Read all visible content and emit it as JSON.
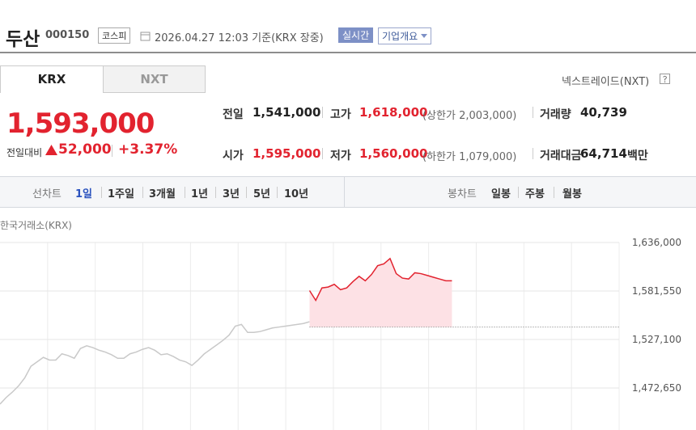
{
  "header": {
    "name": "두산",
    "code": "000150",
    "market": "코스피",
    "timestamp": "2026.04.27 12:03 기준(KRX 장중)",
    "realtime": "실시간",
    "company_info": "기업개요"
  },
  "tabs": [
    "KRX",
    "NXT"
  ],
  "nxt_link": "넥스트레이드(NXT)",
  "quote": {
    "price": "1,593,000",
    "change_label": "전일대비",
    "change": "52,000",
    "change_pct": "+3.37%"
  },
  "stats": [
    {
      "label": "전일",
      "value": "1,541,000"
    },
    {
      "label": "고가",
      "value": "1,618,000",
      "extra": "(상한가 2,003,000)"
    },
    {
      "label": "거래량",
      "value": "40,739"
    },
    {
      "label": "시가",
      "value": "1,595,000"
    },
    {
      "label": "저가",
      "value": "1,560,000",
      "extra": "(하한가 1,079,000)"
    },
    {
      "label": "거래대금",
      "value": "64,714",
      "unit": "백만"
    }
  ],
  "chart_tabs": {
    "line_label": "선차트",
    "line": [
      "1일",
      "1주일",
      "3개월",
      "1년",
      "3년",
      "5년",
      "10년"
    ],
    "candle_label": "봉차트",
    "candle": [
      "일봉",
      "주봉",
      "월봉"
    ]
  },
  "chart_data": {
    "type": "line",
    "title": "한국거래소(KRX)",
    "ylim": [
      1425460,
      1636000
    ],
    "yticks": [
      {
        "value": 1636000,
        "label": "1,636,000"
      },
      {
        "value": 1581550,
        "label": "1,581,550"
      },
      {
        "value": 1527100,
        "label": "1,527,100"
      },
      {
        "value": 1472650,
        "label": "1,472,650"
      }
    ],
    "grid": true,
    "baseline": 1541000,
    "series": [
      {
        "color": "#c9c9c9",
        "values": [
          1454500,
          1462000,
          1468000,
          1475000,
          1484000,
          1497000,
          1502000,
          1507000,
          1504000,
          1504000,
          1511000,
          1509000,
          1506000,
          1517000,
          1520000,
          1518000,
          1515000,
          1513000,
          1510000,
          1506000,
          1506000,
          1511000,
          1513000,
          1516000,
          1518000,
          1515000,
          1510000,
          1511000,
          1508000,
          1504000,
          1502000,
          1498000,
          1504000,
          1511000,
          1516000,
          1521000,
          1526000,
          1532000,
          1542000,
          1544000,
          1535000,
          1535000,
          1536000,
          1538000,
          1540000,
          1541000,
          1542000,
          1543000,
          1544000,
          1545000,
          1547000,
          null,
          null,
          null,
          null,
          null,
          null,
          null,
          null,
          null,
          null,
          null,
          null,
          null,
          null,
          null,
          null,
          null,
          null,
          null,
          null,
          null,
          null,
          null,
          null,
          null,
          null,
          null,
          null,
          null,
          null,
          null,
          null,
          null,
          null,
          null,
          null,
          null,
          null,
          null,
          null,
          null,
          null,
          null,
          null,
          null,
          null,
          null,
          null,
          null,
          null
        ]
      },
      {
        "color": "#e2232f",
        "fill": "#fde1e5",
        "values": [
          null,
          null,
          null,
          null,
          null,
          null,
          null,
          null,
          null,
          null,
          null,
          null,
          null,
          null,
          null,
          null,
          null,
          null,
          null,
          null,
          null,
          null,
          null,
          null,
          null,
          null,
          null,
          null,
          null,
          null,
          null,
          null,
          null,
          null,
          null,
          null,
          null,
          null,
          null,
          null,
          null,
          null,
          null,
          null,
          null,
          null,
          null,
          null,
          null,
          null,
          1582000,
          1571000,
          1585000,
          1586000,
          1589000,
          1583000,
          1585000,
          1592000,
          1598000,
          1593000,
          1600000,
          1610000,
          1612000,
          1618000,
          1601000,
          1596000,
          1595000,
          1602000,
          1601000,
          1599000,
          1597000,
          1595000,
          1593000,
          1593000,
          null,
          null,
          null,
          null,
          null,
          null,
          null,
          null,
          null,
          null,
          null,
          null,
          null,
          null,
          null,
          null,
          null,
          null,
          null,
          null,
          null,
          null,
          null,
          null,
          null,
          null,
          null
        ]
      }
    ]
  }
}
